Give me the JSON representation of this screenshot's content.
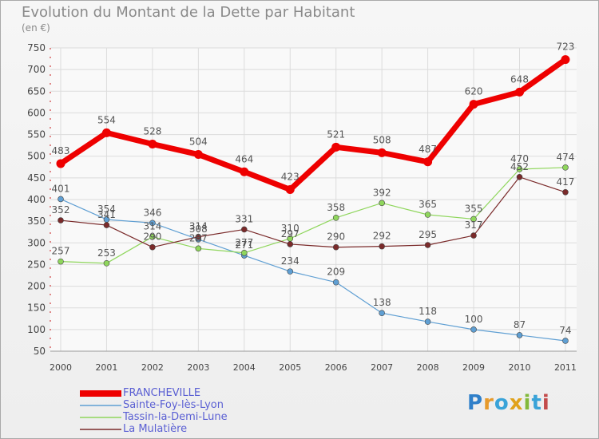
{
  "chart_data": {
    "type": "line",
    "title": "Evolution du Montant de la Dette par Habitant",
    "subtitle": "(en €)",
    "x": [
      "2000",
      "2001",
      "2002",
      "2003",
      "2004",
      "2005",
      "2006",
      "2007",
      "2008",
      "2009",
      "2010",
      "2011"
    ],
    "ylim": [
      50,
      750
    ],
    "yticks": [
      50,
      100,
      150,
      200,
      250,
      300,
      350,
      400,
      450,
      500,
      550,
      600,
      650,
      700,
      750
    ],
    "grid": true,
    "legend_position": "bottom-left",
    "series": [
      {
        "name": "FRANCHEVILLE",
        "color": "#ee0000",
        "values": [
          483,
          554,
          528,
          504,
          464,
          423,
          521,
          508,
          487,
          620,
          648,
          723
        ]
      },
      {
        "name": "Sainte-Foy-lès-Lyon",
        "color": "#5f9fd3",
        "values": [
          401,
          354,
          346,
          308,
          271,
          234,
          209,
          138,
          118,
          100,
          87,
          74
        ]
      },
      {
        "name": "Tassin-la-Demi-Lune",
        "color": "#8fd65c",
        "values": [
          257,
          253,
          314,
          287,
          277,
          310,
          358,
          392,
          365,
          355,
          470,
          474
        ]
      },
      {
        "name": "La Mulatière",
        "color": "#7a2a2a",
        "values": [
          352,
          341,
          290,
          314,
          331,
          297,
          290,
          292,
          295,
          317,
          452,
          417
        ]
      }
    ]
  },
  "legend": [
    {
      "label": "FRANCHEVILLE"
    },
    {
      "label": "Sainte-Foy-lès-Lyon"
    },
    {
      "label": "Tassin-la-Demi-Lune"
    },
    {
      "label": "La Mulatière"
    }
  ],
  "logo": [
    "P",
    "r",
    "o",
    "x",
    "i",
    "t",
    "i"
  ]
}
